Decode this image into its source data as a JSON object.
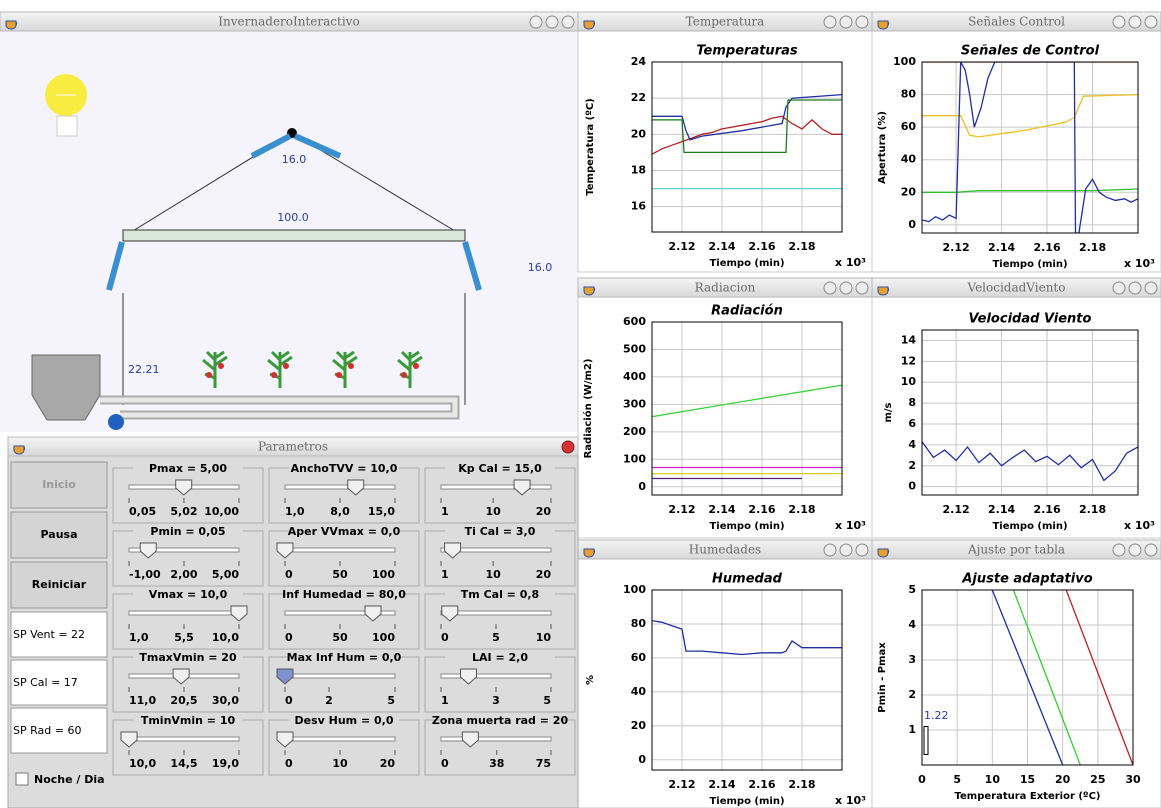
{
  "greenhouse": {
    "title": "InvernaderoInteractivo",
    "vent_top": "16.0",
    "screen": "100.0",
    "vent_side": "16.0",
    "inside_temp": "22.21"
  },
  "parameters": {
    "title": "Parametros",
    "buttons": [
      "Inicio",
      "Pausa",
      "Reiniciar"
    ],
    "setpoints": [
      "SP Vent = 22",
      "SP Cal = 17",
      "SP Rad = 60"
    ],
    "checkbox": "Noche / Dia",
    "sliders": [
      {
        "label": "Pmax = 5,00",
        "value": 5,
        "ticks": [
          {
            "value": 0.05,
            "label": "0,05"
          },
          {
            "value": 5.02,
            "label": "5,02"
          },
          {
            "value": 10,
            "label": "10,00"
          }
        ]
      },
      {
        "label": "AnchoTVV = 10,0",
        "value": 10,
        "ticks": [
          {
            "value": 1,
            "label": "1,0"
          },
          {
            "value": 8,
            "label": "8,0"
          },
          {
            "value": 15,
            "label": "15,0"
          }
        ]
      },
      {
        "label": "Kp Cal = 15,0",
        "value": 15,
        "ticks": [
          1,
          10,
          20
        ]
      },
      {
        "label": "Pmin = 0,05",
        "value": 0.05,
        "ticks": [
          {
            "value": -1,
            "label": "-1,00"
          },
          {
            "value": 2,
            "label": "2,00"
          },
          {
            "value": 5,
            "label": "5,00"
          }
        ]
      },
      {
        "label": "Aper VVmax = 0,0",
        "value": 0,
        "ticks": [
          0,
          50,
          100
        ]
      },
      {
        "label": "Ti Cal = 3,0",
        "value": 3,
        "ticks": [
          1,
          10,
          20
        ]
      },
      {
        "label": "Vmax = 10,0",
        "value": 10,
        "ticks": [
          {
            "value": 1,
            "label": "1,0"
          },
          {
            "value": 5.5,
            "label": "5,5"
          },
          {
            "value": 10,
            "label": "10,0"
          }
        ]
      },
      {
        "label": "Inf Humedad = 80,0",
        "value": 80,
        "ticks": [
          0,
          50,
          100
        ]
      },
      {
        "label": "Tm Cal = 0,8",
        "value": 0.8,
        "ticks": [
          0,
          5,
          10
        ]
      },
      {
        "label": "TmaxVmin = 20",
        "value": 20,
        "ticks": [
          {
            "value": 11,
            "label": "11,0"
          },
          {
            "value": 20.5,
            "label": "20,5"
          },
          {
            "value": 30,
            "label": "30,0"
          }
        ]
      },
      {
        "label": "Max Inf Hum = 0,0",
        "value": 0,
        "ticks": [
          0,
          2,
          5
        ]
      },
      {
        "label": "LAI = 2,0",
        "value": 2,
        "ticks": [
          1,
          3,
          5
        ]
      },
      {
        "label": "TminVmin = 10",
        "value": 10,
        "ticks": [
          {
            "value": 10,
            "label": "10,0"
          },
          {
            "value": 14.5,
            "label": "14,5"
          },
          {
            "value": 19,
            "label": "19,0"
          }
        ]
      },
      {
        "label": "Desv Hum = 0,0",
        "value": 0,
        "ticks": [
          0,
          10,
          20
        ]
      },
      {
        "label": "Zona muerta rad = 20",
        "value": 20,
        "ticks": [
          0,
          38,
          75
        ]
      }
    ]
  },
  "plots": [
    {
      "type": "line",
      "window": "Temperatura",
      "title": "Temperaturas",
      "xlabel": "Tiempo (min)",
      "ylabel": "Temperatura (ºC)",
      "xmult": "x 10³",
      "xlim": [
        2.105,
        2.2
      ],
      "xticks": [
        2.12,
        2.14,
        2.16,
        2.18
      ],
      "ylim": [
        14.6,
        24
      ],
      "yticks": [
        16,
        18,
        20,
        22,
        24
      ],
      "grid": true,
      "series": [
        {
          "color": "#b22222",
          "x": [
            2.105,
            2.11,
            2.115,
            2.12,
            2.125,
            2.13,
            2.135,
            2.14,
            2.145,
            2.15,
            2.155,
            2.16,
            2.165,
            2.17,
            2.175,
            2.18,
            2.185,
            2.19,
            2.195,
            2.2
          ],
          "values": [
            18.9,
            19.2,
            19.4,
            19.6,
            19.8,
            20.0,
            20.1,
            20.3,
            20.4,
            20.5,
            20.6,
            20.7,
            20.9,
            21.0,
            20.6,
            20.3,
            20.8,
            20.3,
            20.0,
            20.0
          ]
        },
        {
          "color": "#1f2fa0",
          "x": [
            2.105,
            2.12,
            2.122,
            2.124,
            2.13,
            2.15,
            2.17,
            2.172,
            2.175,
            2.2
          ],
          "values": [
            21,
            21,
            20.2,
            19.7,
            19.9,
            20.2,
            20.6,
            21.5,
            22.0,
            22.2
          ]
        },
        {
          "color": "#1e7a1e",
          "x": [
            2.105,
            2.12,
            2.121,
            2.172,
            2.173,
            2.2
          ],
          "values": [
            20.8,
            20.8,
            19,
            19,
            21.9,
            21.9
          ]
        },
        {
          "color": "#5fd4d4",
          "x": [
            2.105,
            2.2
          ],
          "values": [
            17,
            17
          ]
        }
      ]
    },
    {
      "type": "line",
      "window": "Señales Control",
      "title": "Señales de Control",
      "xlabel": "Tiempo (min)",
      "ylabel": "Apertura (%)",
      "xmult": "x 10³",
      "xlim": [
        2.105,
        2.2
      ],
      "xticks": [
        2.12,
        2.14,
        2.16,
        2.18
      ],
      "ylim": [
        -5,
        100
      ],
      "yticks": [
        0,
        20,
        40,
        60,
        80,
        100
      ],
      "grid": true,
      "series": [
        {
          "color": "#e02020",
          "x": [
            2.105,
            2.2
          ],
          "values": [
            100,
            100
          ]
        },
        {
          "color": "#f0c020",
          "x": [
            2.105,
            2.122,
            2.126,
            2.13,
            2.15,
            2.168,
            2.172,
            2.176,
            2.2
          ],
          "values": [
            67,
            67,
            55,
            54,
            58,
            63,
            66,
            79,
            80
          ]
        },
        {
          "color": "#30c030",
          "x": [
            2.105,
            2.12,
            2.13,
            2.18,
            2.2
          ],
          "values": [
            20,
            20,
            21,
            21,
            22
          ]
        },
        {
          "color": "#1f2fa0",
          "x": [
            2.105,
            2.108,
            2.111,
            2.114,
            2.117,
            2.12,
            2.122,
            2.124,
            2.126,
            2.128,
            2.131,
            2.134,
            2.137,
            2.14,
            2.172,
            2.1725,
            2.174,
            2.177,
            2.18,
            2.183,
            2.186,
            2.19,
            2.194,
            2.197,
            2.2
          ],
          "values": [
            3,
            2,
            5,
            3,
            6,
            4,
            100,
            95,
            80,
            60,
            72,
            90,
            100,
            100,
            100,
            -5,
            -5,
            22,
            28,
            20,
            17,
            15,
            16,
            14,
            16
          ]
        }
      ]
    },
    {
      "type": "line",
      "window": "Radiacion",
      "title": "Radiación",
      "xlabel": "Tiempo (min)",
      "ylabel": "Radiación (W/m2)",
      "xmult": "x 10³",
      "xlim": [
        2.105,
        2.2
      ],
      "xticks": [
        2.12,
        2.14,
        2.16,
        2.18
      ],
      "ylim": [
        -30,
        600
      ],
      "yticks": [
        0,
        100,
        200,
        300,
        400,
        500,
        600
      ],
      "grid": true,
      "series": [
        {
          "color": "#40d040",
          "x": [
            2.105,
            2.15,
            2.2
          ],
          "values": [
            255,
            310,
            370
          ]
        },
        {
          "color": "#d020d0",
          "x": [
            2.105,
            2.2
          ],
          "values": [
            70,
            70
          ]
        },
        {
          "color": "#d8d020",
          "x": [
            2.105,
            2.2
          ],
          "values": [
            48,
            48
          ]
        },
        {
          "color": "#502080",
          "x": [
            2.105,
            2.18
          ],
          "values": [
            30,
            30
          ]
        }
      ]
    },
    {
      "type": "line",
      "window": "VelocidadViento",
      "title": "Velocidad Viento",
      "xlabel": "Tiempo (min)",
      "ylabel": "m/s",
      "xmult": "x 10³",
      "xlim": [
        2.105,
        2.2
      ],
      "xticks": [
        2.12,
        2.14,
        2.16,
        2.18
      ],
      "ylim": [
        -0.8,
        15
      ],
      "yticks": [
        0,
        2,
        4,
        6,
        8,
        10,
        12,
        14
      ],
      "grid": true,
      "series": [
        {
          "color": "#1f2fa0",
          "x": [
            2.105,
            2.11,
            2.115,
            2.12,
            2.125,
            2.13,
            2.135,
            2.14,
            2.145,
            2.15,
            2.155,
            2.16,
            2.165,
            2.17,
            2.175,
            2.18,
            2.185,
            2.19,
            2.195,
            2.2
          ],
          "values": [
            4.3,
            2.8,
            3.5,
            2.5,
            3.8,
            2.3,
            3.2,
            2.0,
            2.8,
            3.5,
            2.4,
            2.9,
            2.1,
            3.0,
            1.8,
            2.6,
            0.6,
            1.5,
            3.2,
            3.8
          ]
        }
      ]
    },
    {
      "type": "line",
      "window": "Humedades",
      "title": "Humedad",
      "xlabel": "Tiempo (min)",
      "ylabel": "%",
      "xmult": "x 10³",
      "xlim": [
        2.105,
        2.2
      ],
      "xticks": [
        2.12,
        2.14,
        2.16,
        2.18
      ],
      "ylim": [
        -6,
        100
      ],
      "yticks": [
        0,
        20,
        40,
        60,
        80,
        100
      ],
      "grid": true,
      "series": [
        {
          "color": "#1f2fa0",
          "x": [
            2.105,
            2.11,
            2.115,
            2.12,
            2.122,
            2.13,
            2.14,
            2.15,
            2.16,
            2.17,
            2.172,
            2.175,
            2.18,
            2.19,
            2.2
          ],
          "values": [
            82,
            81,
            79,
            77,
            64,
            64,
            63,
            62,
            63,
            63,
            64,
            70,
            66,
            66,
            66
          ]
        }
      ]
    },
    {
      "type": "line",
      "window": "Ajuste por tabla",
      "title": "Ajuste adaptativo",
      "xlabel": "Temperatura Exterior (ºC)",
      "ylabel": "Pmin - Pmax",
      "annotation": "1.22",
      "xlim": [
        0,
        30
      ],
      "xticks": [
        0,
        5,
        10,
        15,
        20,
        25,
        30
      ],
      "ylim": [
        0,
        5
      ],
      "yticks": [
        1,
        2,
        3,
        4,
        5
      ],
      "grid": true,
      "series": [
        {
          "color": "#1f2fa0",
          "x": [
            10,
            20
          ],
          "values": [
            5,
            0
          ]
        },
        {
          "color": "#30d030",
          "x": [
            13,
            22.5
          ],
          "values": [
            5,
            0
          ]
        },
        {
          "color": "#c02020",
          "x": [
            20.5,
            30
          ],
          "values": [
            5,
            0
          ]
        }
      ]
    }
  ]
}
